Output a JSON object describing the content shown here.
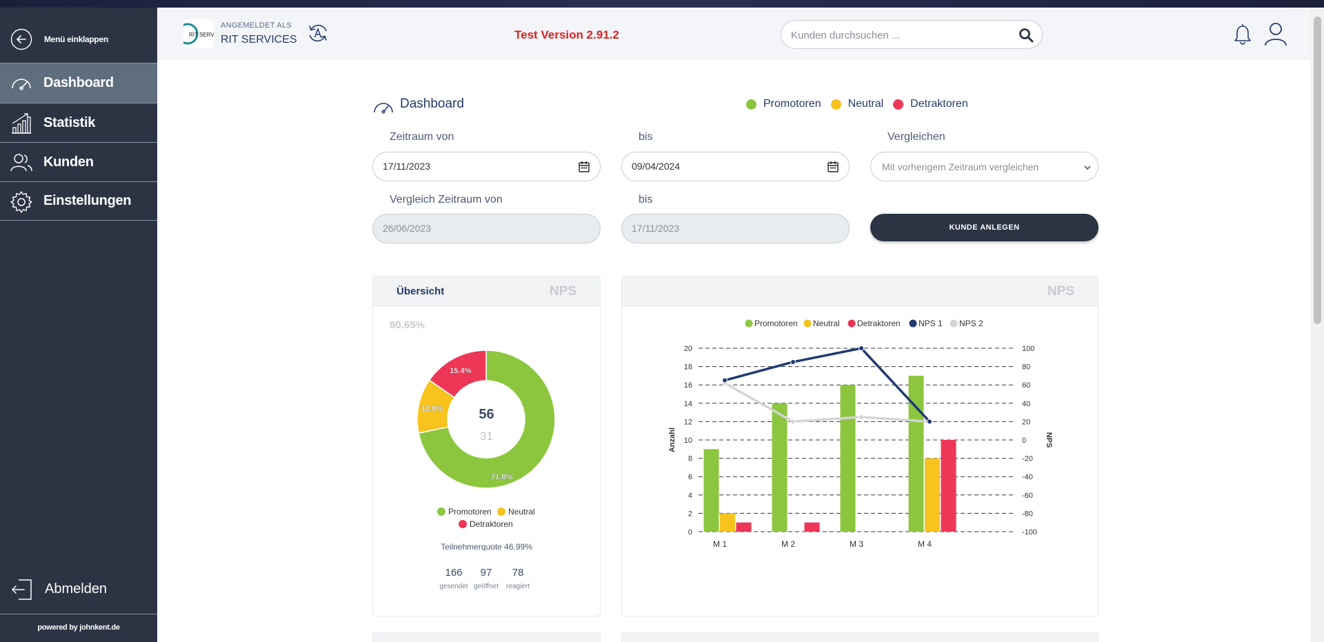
{
  "sidebar": {
    "collapse_label": "Menü einklappen",
    "items": [
      {
        "label": "Dashboard",
        "icon": "gauge-icon"
      },
      {
        "label": "Statistik",
        "icon": "chart-icon"
      },
      {
        "label": "Kunden",
        "icon": "users-icon"
      },
      {
        "label": "Einstellungen",
        "icon": "gear-icon"
      }
    ],
    "logout_label": "Abmelden",
    "powered_by": "powered by johnkent.de"
  },
  "header": {
    "logged_in_as": "ANGEMELDET ALS",
    "account_name": "RIT SERVICES",
    "version": "Test Version 2.91.2",
    "search_placeholder": "Kunden durchsuchen ..."
  },
  "page": {
    "title": "Dashboard",
    "legend": [
      {
        "label": "Promotoren",
        "color": "#8cc63f"
      },
      {
        "label": "Neutral",
        "color": "#f7c31c"
      },
      {
        "label": "Detraktoren",
        "color": "#ee3657"
      }
    ]
  },
  "filters": {
    "period_from_label": "Zeitraum von",
    "period_from_value": "17/11/2023",
    "period_to_label": "bis",
    "period_to_value": "09/04/2024",
    "compare_label": "Vergleichen",
    "compare_value": "Mit vorherigem Zeitraum vergleichen",
    "compare_from_label": "Vergleich Zeitraum von",
    "compare_from_value": "26/06/2023",
    "compare_to_label": "bis",
    "compare_to_value": "17/11/2023",
    "create_button": "KUNDE ANLEGEN"
  },
  "overview": {
    "tab_label": "Übersicht",
    "nps_label": "NPS",
    "percentage": "80.65%",
    "center_value": "56",
    "center_sub": "31",
    "slices": [
      {
        "label": "Promotoren",
        "pct": 71.8,
        "text": "71.8%",
        "color": "#8cc63f"
      },
      {
        "label": "Neutral",
        "pct": 12.8,
        "text": "12.8%",
        "color": "#f7c31c"
      },
      {
        "label": "Detraktoren",
        "pct": 15.4,
        "text": "15.4%",
        "color": "#ee3657"
      }
    ],
    "legend": [
      "Promotoren",
      "Neutral",
      "Detraktoren"
    ],
    "quote": "Teilnehmerquote 46.99%",
    "stats": [
      {
        "value": "166",
        "label": "gesendet"
      },
      {
        "value": "97",
        "label": "geöffnet"
      },
      {
        "value": "78",
        "label": "reagiert"
      }
    ]
  },
  "nps_card": {
    "nps_label": "NPS"
  },
  "chart_data": {
    "type": "bar",
    "categories": [
      "M 1",
      "M 2",
      "M 3",
      "M 4"
    ],
    "series": [
      {
        "name": "Promotoren",
        "type": "bar",
        "axis": "left",
        "color": "#8cc63f",
        "values": [
          9,
          14,
          16,
          17
        ]
      },
      {
        "name": "Neutral",
        "type": "bar",
        "axis": "left",
        "color": "#f7c31c",
        "values": [
          2,
          0,
          0,
          8
        ]
      },
      {
        "name": "Detraktoren",
        "type": "bar",
        "axis": "left",
        "color": "#ee3657",
        "values": [
          1,
          1,
          0,
          10
        ]
      },
      {
        "name": "NPS 1",
        "type": "line",
        "axis": "right",
        "color": "#1f3a73",
        "values": [
          65,
          85,
          100,
          20
        ]
      },
      {
        "name": "NPS 2",
        "type": "line",
        "axis": "right",
        "color": "#d4d4d4",
        "values": [
          62,
          20,
          25,
          20
        ]
      }
    ],
    "ylabel": "Anzahl",
    "y2label": "NPS",
    "ylim": [
      0,
      20
    ],
    "y2lim": [
      -100,
      100
    ],
    "yticks": [
      0,
      2,
      4,
      6,
      8,
      10,
      12,
      14,
      16,
      18,
      20
    ],
    "y2ticks": [
      -100,
      -80,
      -60,
      -40,
      -20,
      0,
      20,
      40,
      60,
      80,
      100
    ],
    "legend": [
      "Promotoren",
      "Neutral",
      "Detraktoren",
      "NPS 1",
      "NPS 2"
    ],
    "grid": true
  }
}
